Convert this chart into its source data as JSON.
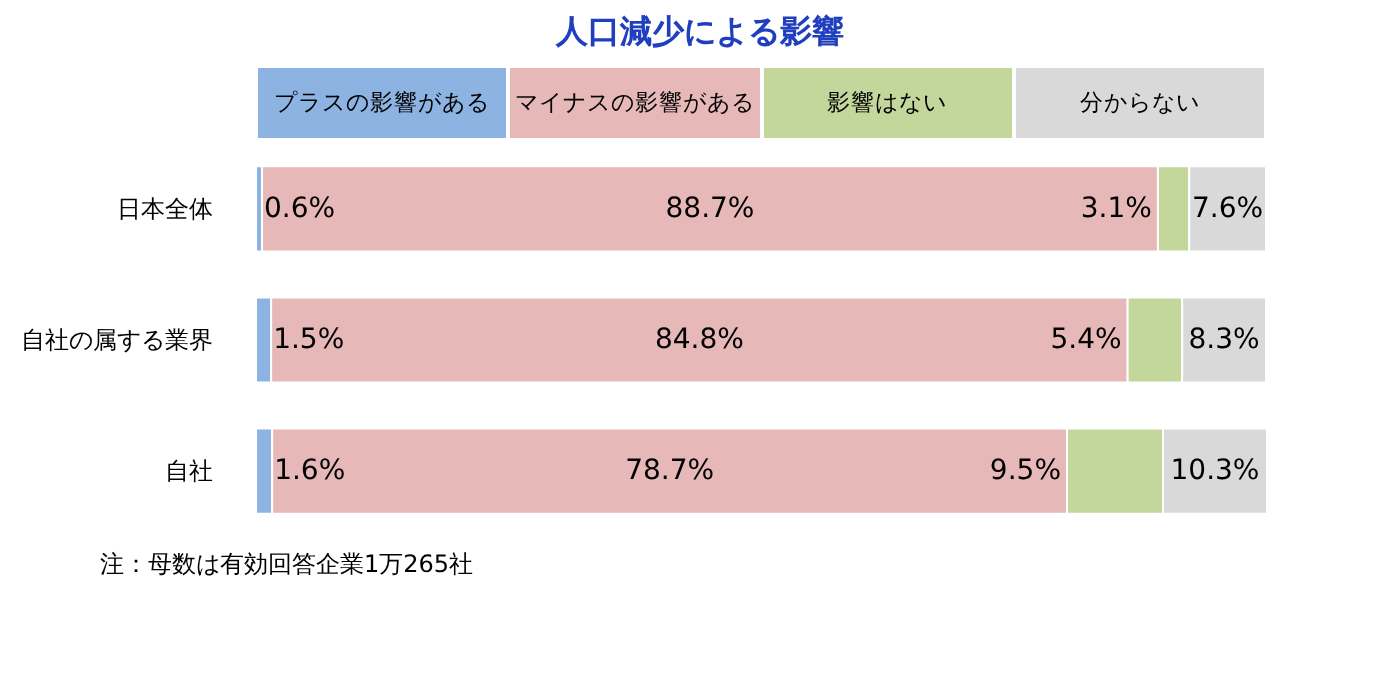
{
  "chart_data": {
    "type": "bar",
    "orientation": "horizontal",
    "stacked": true,
    "title": "人口減少による影響",
    "categories": [
      "日本全体",
      "自社の属する業界",
      "自社"
    ],
    "series": [
      {
        "name": "プラスの影響がある",
        "color": "#8db3e2",
        "values": [
          0.6,
          1.5,
          1.6
        ],
        "value_labels": [
          "0.6%",
          "1.5%",
          "1.6%"
        ]
      },
      {
        "name": "マイナスの影響がある",
        "color": "#e6b8b7",
        "values": [
          88.7,
          84.8,
          78.7
        ],
        "value_labels": [
          "88.7%",
          "84.8%",
          "78.7%"
        ]
      },
      {
        "name": "影響はない",
        "color": "#c3d69b",
        "values": [
          3.1,
          5.4,
          9.5
        ],
        "value_labels": [
          "3.1%",
          "5.4%",
          "9.5%"
        ]
      },
      {
        "name": "分からない",
        "color": "#d9d9d9",
        "values": [
          7.6,
          8.3,
          10.3
        ],
        "value_labels": [
          "7.6%",
          "8.3%",
          "10.3%"
        ]
      }
    ],
    "xlim": [
      0,
      100
    ],
    "legend": "top",
    "grid": false,
    "annotations": [
      "注：母数は有効回答企業1万265社"
    ]
  }
}
